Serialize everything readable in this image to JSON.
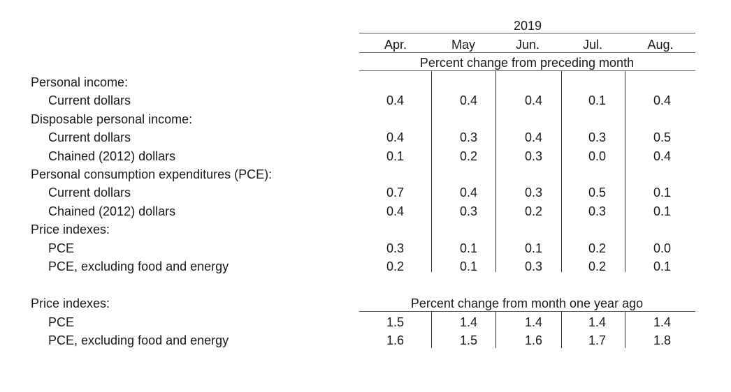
{
  "header": {
    "year": "2019",
    "months": [
      "Apr.",
      "May",
      "Jun.",
      "Jul.",
      "Aug."
    ],
    "subheader_1": "Percent change from preceding month",
    "subheader_2": "Percent change from month one year ago"
  },
  "section_1": [
    {
      "label": "Personal income:",
      "indent": false,
      "values": []
    },
    {
      "label": "Current dollars",
      "indent": true,
      "values": [
        "0.4",
        "0.4",
        "0.4",
        "0.1",
        "0.4"
      ]
    },
    {
      "label": "Disposable personal income:",
      "indent": false,
      "values": []
    },
    {
      "label": "Current dollars",
      "indent": true,
      "values": [
        "0.4",
        "0.3",
        "0.4",
        "0.3",
        "0.5"
      ]
    },
    {
      "label": "Chained (2012) dollars",
      "indent": true,
      "values": [
        "0.1",
        "0.2",
        "0.3",
        "0.0",
        "0.4"
      ]
    },
    {
      "label": "Personal consumption expenditures (PCE):",
      "indent": false,
      "values": []
    },
    {
      "label": "Current dollars",
      "indent": true,
      "values": [
        "0.7",
        "0.4",
        "0.3",
        "0.5",
        "0.1"
      ]
    },
    {
      "label": "Chained (2012) dollars",
      "indent": true,
      "values": [
        "0.4",
        "0.3",
        "0.2",
        "0.3",
        "0.1"
      ]
    },
    {
      "label": "Price indexes:",
      "indent": false,
      "values": []
    },
    {
      "label": "PCE",
      "indent": true,
      "values": [
        "0.3",
        "0.1",
        "0.1",
        "0.2",
        "0.0"
      ]
    },
    {
      "label": "PCE, excluding food and energy",
      "indent": true,
      "values": [
        "0.2",
        "0.1",
        "0.3",
        "0.2",
        "0.1"
      ]
    }
  ],
  "section_2": {
    "heading": "Price indexes:",
    "rows": [
      {
        "label": "PCE",
        "indent": true,
        "values": [
          "1.5",
          "1.4",
          "1.4",
          "1.4",
          "1.4"
        ]
      },
      {
        "label": "PCE, excluding food and energy",
        "indent": true,
        "values": [
          "1.6",
          "1.5",
          "1.6",
          "1.7",
          "1.8"
        ]
      }
    ]
  }
}
